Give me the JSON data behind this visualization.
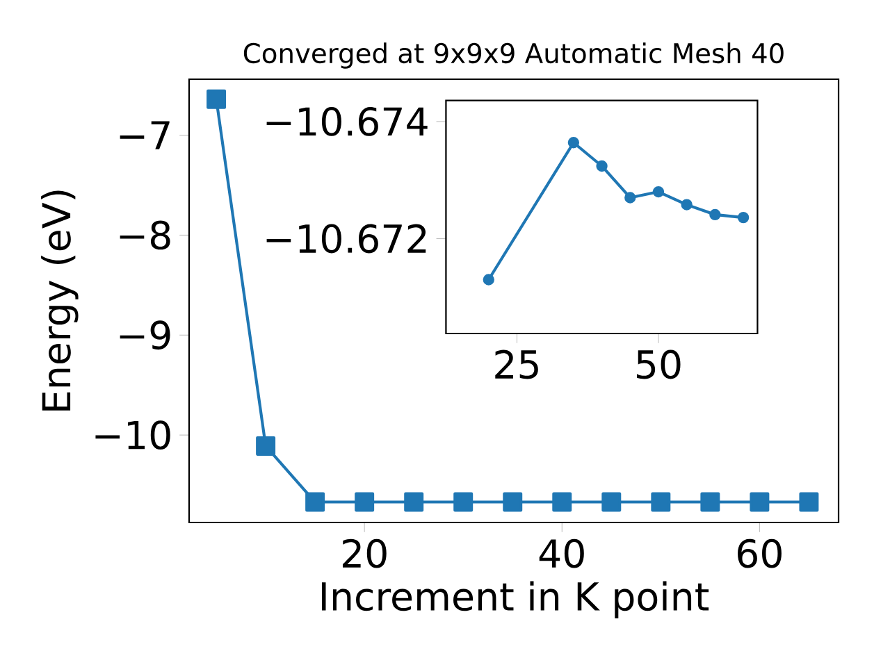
{
  "chart_data": [
    {
      "type": "line",
      "title": "Converged at 9x9x9 Automatic Mesh 40",
      "xlabel": "Increment in K point",
      "ylabel": "Energy (eV)",
      "x": [
        5,
        10,
        15,
        20,
        25,
        30,
        35,
        40,
        45,
        50,
        55,
        60,
        65
      ],
      "series": [
        {
          "color": "#1f77b4",
          "values": [
            -6.64,
            -10.11,
            -10.67,
            -10.67,
            -10.67,
            -10.67,
            -10.67,
            -10.67,
            -10.67,
            -10.67,
            -10.67,
            -10.67,
            -10.67
          ]
        }
      ],
      "xlim": [
        2.25,
        68.0
      ],
      "ylim": [
        -10.875,
        -6.44
      ],
      "xticks": [
        20,
        40,
        60
      ],
      "yticks": [
        {
          "value": -10,
          "label": "−10"
        },
        {
          "value": -9,
          "label": "−9"
        },
        {
          "value": -8,
          "label": "−8"
        },
        {
          "value": -7,
          "label": "−7"
        }
      ],
      "marker": "square",
      "line_style": "solid"
    },
    {
      "type": "line",
      "x": [
        20,
        35,
        40,
        45,
        50,
        55,
        60,
        65
      ],
      "series": [
        {
          "color": "#1f77b4",
          "values": [
            -10.6713,
            -10.67364,
            -10.67324,
            -10.6727,
            -10.6728,
            -10.67258,
            -10.67241,
            -10.67236
          ]
        }
      ],
      "xlim": [
        12.46,
        67.5
      ],
      "ylim": [
        -10.67038,
        -10.67436
      ],
      "xticks": [
        25,
        50
      ],
      "yticks": [
        {
          "value": -10.674,
          "label": "−10.674"
        },
        {
          "value": -10.672,
          "label": "−10.672"
        }
      ],
      "marker": "circle",
      "line_style": "solid"
    }
  ]
}
